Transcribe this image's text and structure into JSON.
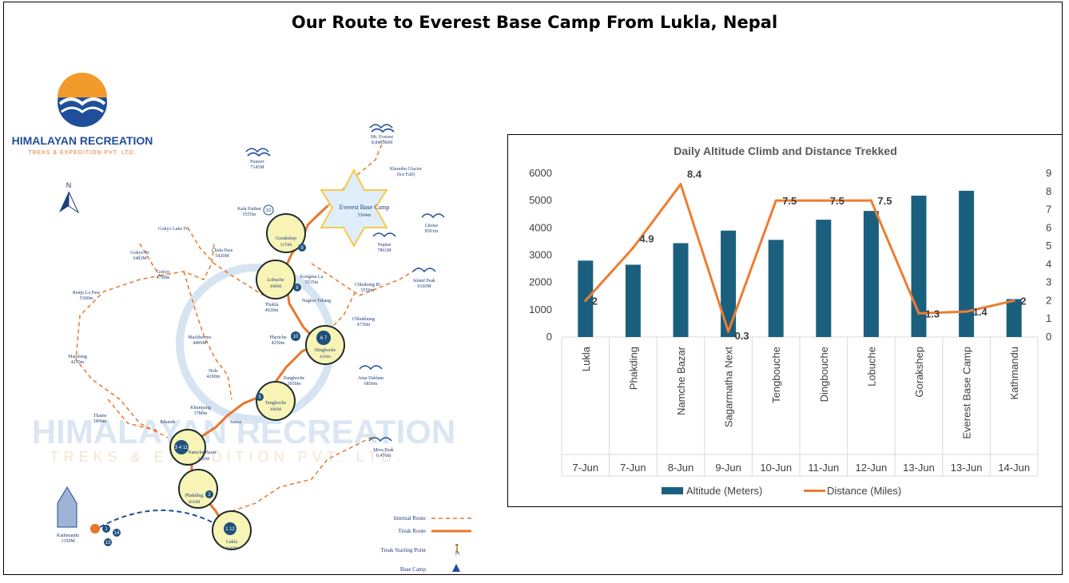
{
  "page": {
    "title": "Our Route to Everest Base Camp From Lukla, Nepal"
  },
  "map": {
    "logo_name": "HIMALAYAN RECREATION",
    "logo_sub": "TREKS & EXPEDITION PVT. LTD.",
    "north": "N",
    "watermark_name": "HIMALAYAN RECREATION",
    "watermark_sub": "TREKS & EXPEDITION PVT. LTD.",
    "colors": {
      "route": "#e8762c",
      "navy": "#1f3c7a",
      "stop_fill": "#f7f4b5"
    },
    "stops": [
      {
        "name": "Gorakshep",
        "alt": "5170M",
        "num": "9"
      },
      {
        "name": "Lobuche",
        "alt": "4900M",
        "num": "8"
      },
      {
        "name": "Dingboche",
        "alt": "4410m",
        "num": "6 7"
      },
      {
        "name": "Tengboche",
        "alt": "3860M",
        "num": "5"
      },
      {
        "name": "Namche Bazar",
        "alt": "3440M",
        "num": "3 4 11"
      },
      {
        "name": "Phakding",
        "alt": "2610M",
        "num": "2"
      },
      {
        "name": "Lukla",
        "alt": "2840M",
        "num": "1 12"
      }
    ],
    "labels": {
      "everest": "Mt. Everest",
      "everest_alt": "8,848.86M",
      "khumbu": "Khumbu Glacier",
      "icefall": "(Ice Fall)",
      "pumori": "Pumori",
      "pumori_alt": "7145M",
      "ebc": "Everest Base Camp",
      "ebc_alt": "5364m",
      "kala": "Kala Patthar",
      "kala_alt": "5555m",
      "lhotse": "Lhotse",
      "lhotse_alt": "8501m",
      "nuptse": "Nuptse",
      "nuptse_alt": "7861M",
      "kongma": "Kongma La",
      "kongma_alt": "5535m",
      "island": "Island Peak",
      "island_alt": "6160M",
      "chhukung_ri": "Chhukung Ri",
      "chhukung_ri_alt": "5550m",
      "nagkar": "Nagkar Tshang",
      "chhukhung": "Chhukhung",
      "chhukhung_alt": "4730m",
      "thukla": "Thukla",
      "thukla_alt": "4620m",
      "pheriche": "Pheriche",
      "pheriche_alt": "4250m",
      "pangboche": "Pangboche",
      "pangboche_alt": "3930m",
      "ama": "Ama Dablam",
      "ama_alt": "6856m",
      "gokyo4": "Gokyo Lake IV",
      "gokyori": "Gokyo Ri",
      "gokyori_alt": "5483M",
      "gokyo": "Gokyo",
      "gokyo_alt": "4790m",
      "chola": "Chola Pass",
      "chola_alt": "5420M",
      "renjo": "Renjo La Pass",
      "renjo_alt": "5360m",
      "machhermo": "Machhermo",
      "machhermo_alt": "4400M",
      "marulung": "Marulung",
      "marulung_alt": "4210m",
      "dole": "Dole",
      "dole_alt": "4200m",
      "khumjung": "Khumjung",
      "khumjung_alt": "3780m",
      "khunde": "Khunde",
      "sanasa": "Sansa",
      "thame": "Thame",
      "thame_alt": "3490m",
      "mera": "Mera Peak",
      "mera_alt": "6,476m",
      "kathmandu": "Kathmandu",
      "kathmandu_alt": "1350M",
      "ktm_num_a": "1",
      "ktm_num_b": "14",
      "ktm_num_c": "13",
      "kala_num": "10",
      "pheriche_num": "10"
    },
    "legend": {
      "internal": "Internal Route",
      "trek": "Treak Route",
      "start": "Treak Starting Point",
      "base": "Base Camp"
    }
  },
  "chart_data": {
    "type": "bar",
    "title": "Daily Altitude Climb and Distance Trekked",
    "categories": [
      "Lukla",
      "Phakding",
      "Namche Bazar",
      "Sagarmatha Next",
      "Tengbouche",
      "Dingbouche",
      "Lobuche",
      "Gorakshep",
      "Everest Base Camp",
      "Kathmandu"
    ],
    "dates": [
      "7-Jun",
      "7-Jun",
      "8-Jun",
      "9-Jun",
      "10-Jun",
      "11-Jun",
      "12-Jun",
      "13-Jun",
      "13-Jun",
      "14-Jun"
    ],
    "series": [
      {
        "name": "Altitude  (Meters)",
        "type": "bar",
        "axis": "left",
        "color": "#1b5f7f",
        "values": [
          2800,
          2650,
          3440,
          3900,
          3560,
          4300,
          4620,
          5180,
          5360,
          1390
        ]
      },
      {
        "name": "Distance (Miles)",
        "type": "line",
        "axis": "right",
        "color": "#ed7d31",
        "values": [
          2,
          4.9,
          8.4,
          0.3,
          7.5,
          7.5,
          7.5,
          1.3,
          1.4,
          2
        ],
        "labels": [
          "2",
          "4.9",
          "8.4",
          "0.3",
          "7.5",
          "7.5",
          "7.5",
          "1.3",
          "1.4",
          "2"
        ]
      }
    ],
    "ylim": [
      0,
      6000
    ],
    "yticks": [
      "0",
      "1000",
      "2000",
      "3000",
      "4000",
      "5000",
      "6000"
    ],
    "y2lim": [
      0,
      9
    ],
    "y2ticks": [
      "0",
      "1",
      "2",
      "3",
      "4",
      "5",
      "6",
      "7",
      "8",
      "9"
    ],
    "grid": false,
    "legend_position": "bottom"
  }
}
